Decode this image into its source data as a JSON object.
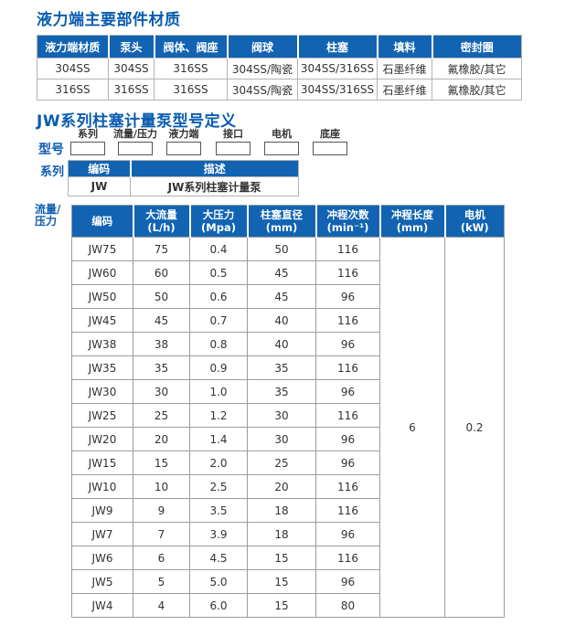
{
  "theme": {
    "accent_color": "#1264b2",
    "title_color": "#0a5cb0"
  },
  "section_materials": {
    "title": "液力端主要部件材质",
    "table": {
      "headers": [
        "液力端材质",
        "泵头",
        "阀体、阀座",
        "阀球",
        "柱塞",
        "填料",
        "密封圈"
      ],
      "rows": [
        [
          "304SS",
          "304SS",
          "316SS",
          "304SS/陶瓷",
          "304SS/316SS",
          "石墨纤维",
          "氟橡胶/其它"
        ],
        [
          "316SS",
          "316SS",
          "316SS",
          "304SS/陶瓷",
          "304SS/316SS",
          "石墨纤维",
          "氟橡胶/其它"
        ]
      ]
    }
  },
  "section_model": {
    "title": "JW系列柱塞计量泵型号定义",
    "model_label": "型号",
    "slots": [
      "系列",
      "流量/压力",
      "液力端",
      "接口",
      "电机",
      "底座"
    ],
    "series_label": "系列",
    "series_table": {
      "headers": [
        "编码",
        "描述"
      ],
      "rows": [
        [
          "JW",
          "JW系列柱塞计量泵"
        ]
      ]
    }
  },
  "section_specs": {
    "side_label_line1": "流量/",
    "side_label_line2": "压力",
    "table": {
      "headers": [
        {
          "l1": "编码",
          "l2": ""
        },
        {
          "l1": "大流量",
          "l2": "(L/h)"
        },
        {
          "l1": "大压力",
          "l2": "(Mpa)"
        },
        {
          "l1": "柱塞直径",
          "l2": "(mm)"
        },
        {
          "l1": "冲程次数",
          "l2": "(min⁻¹)"
        },
        {
          "l1": "冲程长度",
          "l2": "(mm)"
        },
        {
          "l1": "电机",
          "l2": "(kW)"
        }
      ],
      "rows": [
        [
          "JW75",
          "75",
          "0.4",
          "50",
          "116"
        ],
        [
          "JW60",
          "60",
          "0.5",
          "45",
          "116"
        ],
        [
          "JW50",
          "50",
          "0.6",
          "45",
          "96"
        ],
        [
          "JW45",
          "45",
          "0.7",
          "40",
          "116"
        ],
        [
          "JW38",
          "38",
          "0.8",
          "40",
          "96"
        ],
        [
          "JW35",
          "35",
          "0.9",
          "35",
          "116"
        ],
        [
          "JW30",
          "30",
          "1.0",
          "35",
          "96"
        ],
        [
          "JW25",
          "25",
          "1.2",
          "30",
          "116"
        ],
        [
          "JW20",
          "20",
          "1.4",
          "30",
          "96"
        ],
        [
          "JW15",
          "15",
          "2.0",
          "25",
          "96"
        ],
        [
          "JW10",
          "10",
          "2.5",
          "20",
          "116"
        ],
        [
          "JW9",
          "9",
          "3.5",
          "18",
          "116"
        ],
        [
          "JW7",
          "7",
          "3.9",
          "18",
          "96"
        ],
        [
          "JW6",
          "6",
          "4.5",
          "15",
          "116"
        ],
        [
          "JW5",
          "5",
          "5.0",
          "15",
          "96"
        ],
        [
          "JW4",
          "4",
          "6.0",
          "15",
          "80"
        ]
      ],
      "merged": {
        "stroke_length_mm": "6",
        "motor_kw": "0.2"
      }
    }
  }
}
